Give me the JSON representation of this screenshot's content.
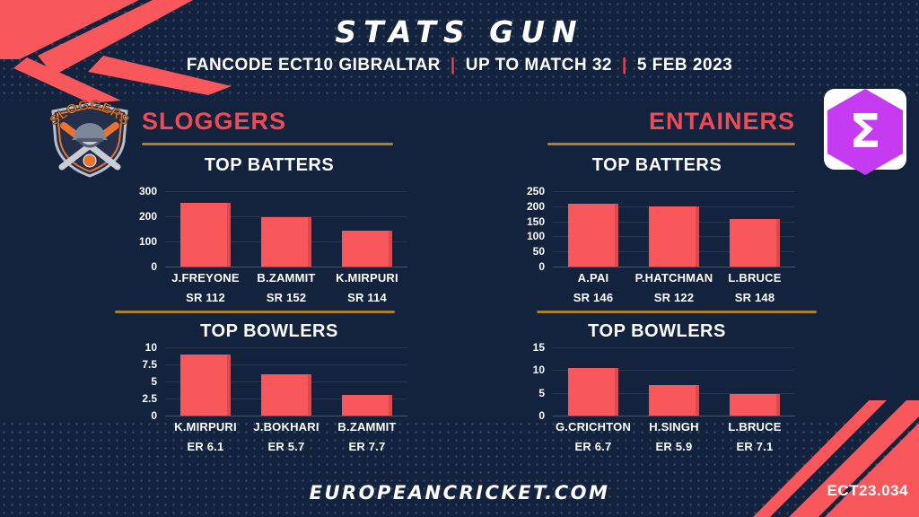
{
  "header": {
    "title": "STATS GUN",
    "subtitle_parts": [
      "FANCODE ECT10 GIBRALTAR",
      "UP TO MATCH 32",
      "5 FEB 2023"
    ],
    "separator": "|"
  },
  "teams": [
    {
      "name": "SLOGGERS"
    },
    {
      "name": "ENTAINERS"
    }
  ],
  "chart_data": [
    {
      "type": "bar",
      "team": "SLOGGERS",
      "title": "TOP BATTERS",
      "categories": [
        "J.FREYONE",
        "B.ZAMMIT",
        "K.MIRPURI"
      ],
      "values": [
        255,
        195,
        142
      ],
      "sublabels": [
        "SR 112",
        "SR 152",
        "SR 114"
      ],
      "yticks": [
        0,
        100,
        200,
        300
      ],
      "ylim": [
        0,
        300
      ],
      "bar_color": "#F8575C",
      "grid": true,
      "legend": false
    },
    {
      "type": "bar",
      "team": "SLOGGERS",
      "title": "TOP BOWLERS",
      "categories": [
        "K.MIRPURI",
        "J.BOKHARI",
        "B.ZAMMIT"
      ],
      "values": [
        9,
        6,
        3
      ],
      "sublabels": [
        "ER 6.1",
        "ER 5.7",
        "ER 7.7"
      ],
      "yticks": [
        0,
        2.5,
        5,
        7.5,
        10
      ],
      "ylim": [
        0,
        10
      ],
      "bar_color": "#F8575C",
      "grid": true,
      "legend": false
    },
    {
      "type": "bar",
      "team": "ENTAINERS",
      "title": "TOP BATTERS",
      "categories": [
        "A.PAI",
        "P.HATCHMAN",
        "L.BRUCE"
      ],
      "values": [
        207,
        200,
        158
      ],
      "sublabels": [
        "SR 146",
        "SR 122",
        "SR 148"
      ],
      "yticks": [
        0,
        50,
        100,
        150,
        200,
        250
      ],
      "ylim": [
        0,
        250
      ],
      "bar_color": "#F8575C",
      "grid": true,
      "legend": false
    },
    {
      "type": "bar",
      "team": "ENTAINERS",
      "title": "TOP BOWLERS",
      "categories": [
        "G.CRICHTON",
        "H.SINGH",
        "L.BRUCE"
      ],
      "values": [
        10.5,
        6.8,
        4.8
      ],
      "sublabels": [
        "ER 6.7",
        "ER 5.9",
        "ER 7.1"
      ],
      "yticks": [
        0,
        5,
        10,
        15
      ],
      "ylim": [
        0,
        15
      ],
      "bar_color": "#F8575C",
      "grid": true,
      "legend": false
    }
  ],
  "logos": {
    "left_text": "SLOGGERS",
    "right_symbol": "Σ"
  },
  "footer": {
    "site": "EUROPEANCRICKET.COM",
    "code": "ECT23.034"
  },
  "colors": {
    "background_navy": "#13223D",
    "accent_coral": "#F8575C",
    "team_name_red": "#EF4B55",
    "divider_gold": "#A9802F",
    "separator_red": "#E8414B",
    "sigma_purple": "#C43BF2",
    "text_white": "#FFFFFF"
  }
}
